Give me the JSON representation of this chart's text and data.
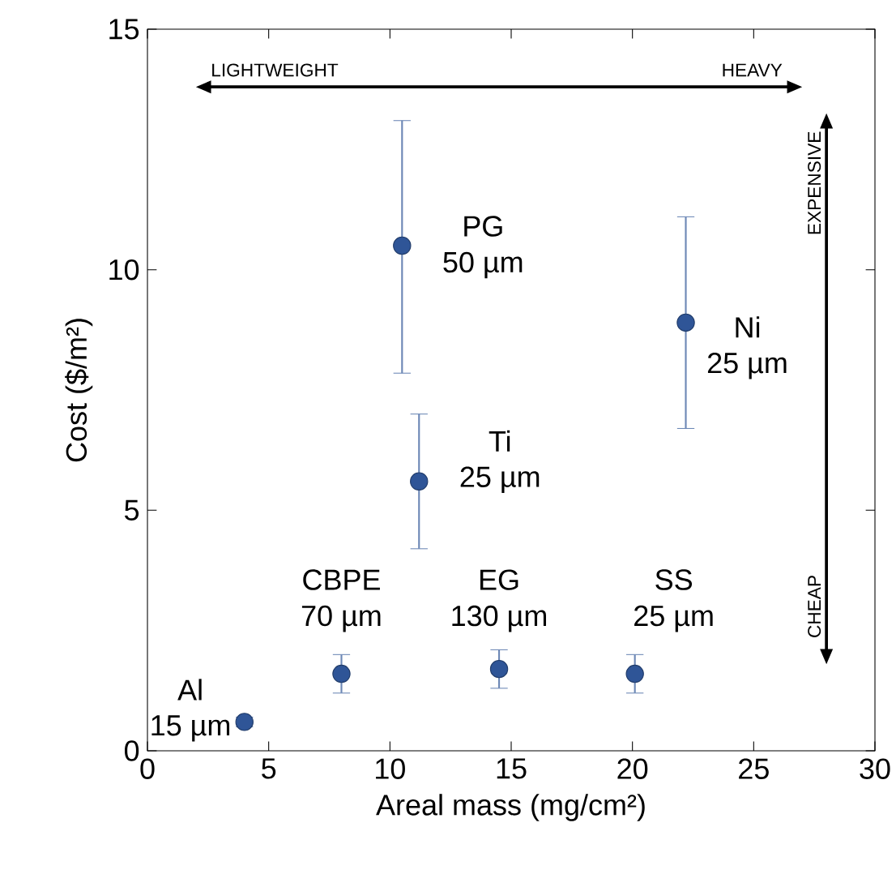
{
  "chart_data": {
    "type": "scatter",
    "xlabel": "Areal mass (mg/cm²)",
    "ylabel": "Cost ($/m²)",
    "x": [
      4,
      8,
      10.5,
      11.2,
      14.5,
      20.1,
      22.2
    ],
    "values": [
      0.6,
      1.6,
      10.5,
      5.6,
      1.7,
      1.6,
      8.9
    ],
    "errors": [
      [
        0.5,
        0.7
      ],
      [
        1.2,
        2.0
      ],
      [
        7.85,
        13.1
      ],
      [
        4.2,
        7.0
      ],
      [
        1.3,
        2.1
      ],
      [
        1.2,
        2.0
      ],
      [
        6.7,
        11.1
      ]
    ],
    "color": "#2f5597",
    "marker": "circle",
    "xlim": [
      0,
      30
    ],
    "ylim": [
      0,
      15
    ],
    "xticks": [
      0,
      5,
      10,
      15,
      20,
      25,
      30
    ],
    "yticks": [
      0,
      5,
      10,
      15
    ],
    "annotations": [
      {
        "text": "Al",
        "x": 4,
        "y": 0.6
      },
      {
        "text": "15 µm",
        "x": 4,
        "y": 0.6
      },
      {
        "text": "CBPE",
        "x": 8,
        "y": 1.6
      },
      {
        "text": "70 µm",
        "x": 8,
        "y": 1.6
      },
      {
        "text": "PG",
        "x": 10.5,
        "y": 10.5
      },
      {
        "text": "50 µm",
        "x": 10.5,
        "y": 10.5
      },
      {
        "text": "Ti",
        "x": 11.2,
        "y": 5.6
      },
      {
        "text": "25 µm",
        "x": 11.2,
        "y": 5.6
      },
      {
        "text": "EG",
        "x": 14.5,
        "y": 1.7
      },
      {
        "text": "130 µm",
        "x": 14.5,
        "y": 1.7
      },
      {
        "text": "SS",
        "x": 20.1,
        "y": 1.6
      },
      {
        "text": "25 µm",
        "x": 20.1,
        "y": 1.6
      },
      {
        "text": "Ni",
        "x": 22.2,
        "y": 8.9
      },
      {
        "text": "25 µm",
        "x": 22.2,
        "y": 8.9
      },
      "LIGHTWEIGHT",
      "HEAVY",
      "EXPENSIVE",
      "CHEAP"
    ]
  }
}
